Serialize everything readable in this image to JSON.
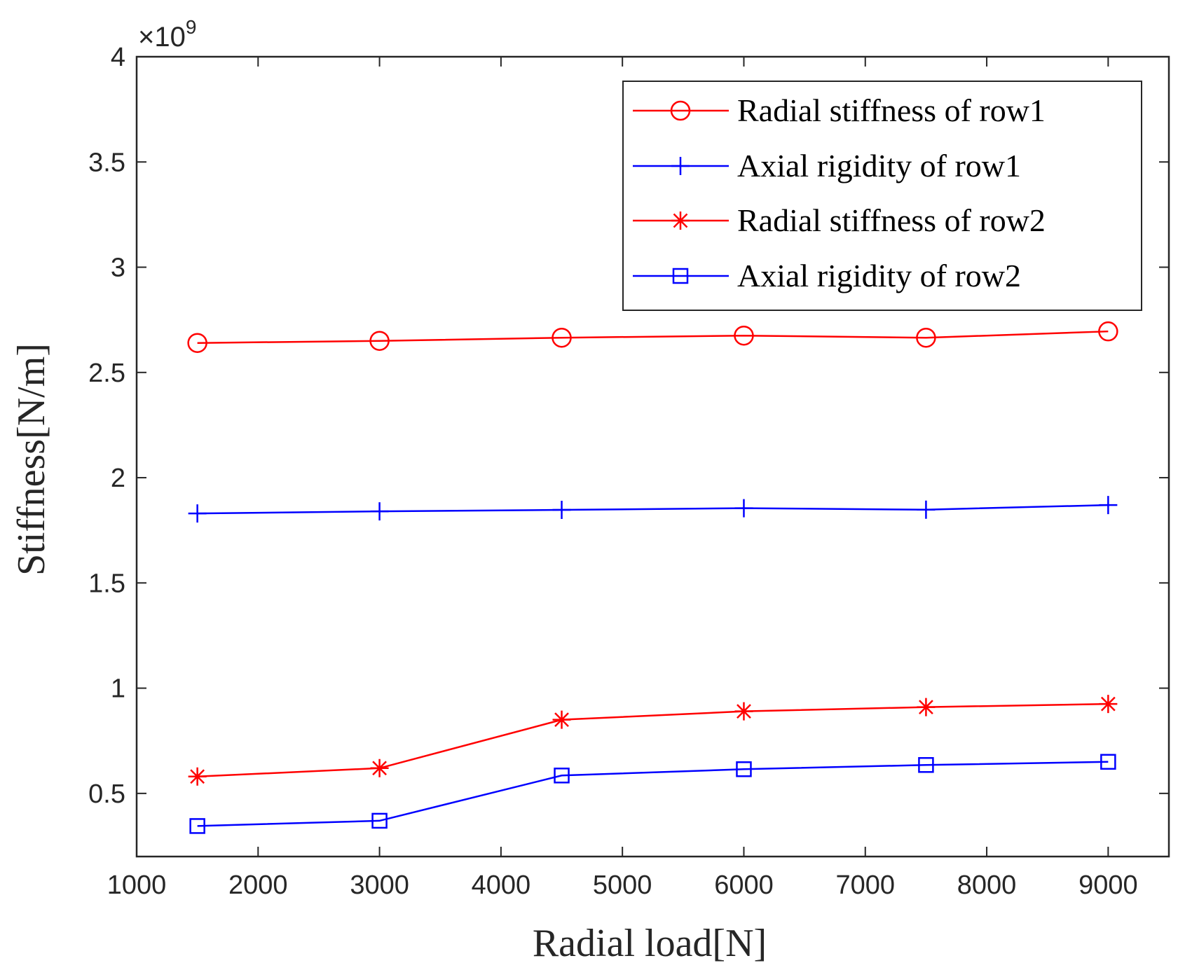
{
  "chart_data": {
    "type": "line",
    "title": "",
    "xlabel": "Radial load[N]",
    "ylabel": "Stiffness[N/m]",
    "y_exponent_base": "×10",
    "y_exponent_power": "9",
    "xlim": [
      1000,
      9500
    ],
    "ylim": [
      0.2,
      4.0
    ],
    "xticks": [
      1000,
      2000,
      3000,
      4000,
      5000,
      6000,
      7000,
      8000,
      9000
    ],
    "xtick_labels": [
      "1000",
      "2000",
      "3000",
      "4000",
      "5000",
      "6000",
      "7000",
      "8000",
      "9000"
    ],
    "yticks": [
      0.5,
      1.0,
      1.5,
      2.0,
      2.5,
      3.0,
      3.5,
      4.0
    ],
    "ytick_labels": [
      "0.5",
      "1",
      "1.5",
      "2",
      "2.5",
      "3",
      "3.5",
      "4"
    ],
    "grid": false,
    "legend_position": "top-right",
    "x": [
      1500,
      3000,
      4500,
      6000,
      7500,
      9000
    ],
    "series": [
      {
        "name": "Radial stiffness of row1",
        "color": "#ff0000",
        "marker": "circle",
        "values": [
          2.64,
          2.65,
          2.665,
          2.675,
          2.665,
          2.695
        ]
      },
      {
        "name": "Axial rigidity of row1",
        "color": "#0000ff",
        "marker": "plus",
        "values": [
          1.83,
          1.84,
          1.847,
          1.855,
          1.848,
          1.87
        ]
      },
      {
        "name": "Radial stiffness of row2",
        "color": "#ff0000",
        "marker": "asterisk",
        "values": [
          0.58,
          0.62,
          0.85,
          0.89,
          0.91,
          0.925
        ]
      },
      {
        "name": "Axial rigidity of row2",
        "color": "#0000ff",
        "marker": "square",
        "values": [
          0.345,
          0.37,
          0.585,
          0.615,
          0.635,
          0.65
        ]
      }
    ]
  }
}
